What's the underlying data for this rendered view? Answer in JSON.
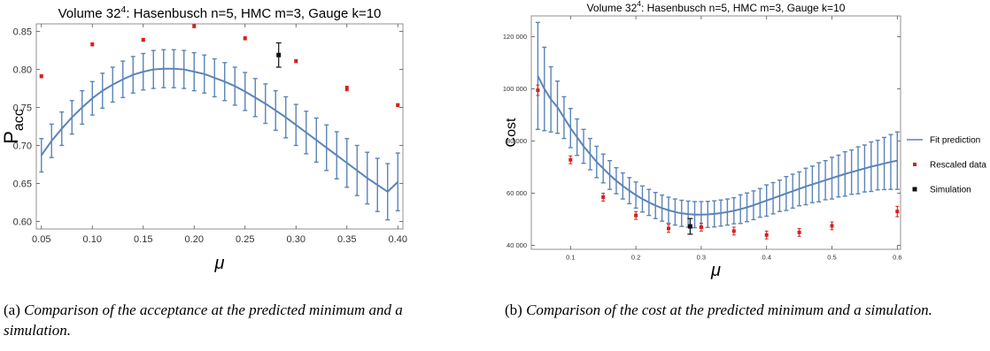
{
  "chart_data": [
    {
      "type": "line",
      "title_pre": "Volume 32",
      "title_sup": "4",
      "title_post": ": Hasenbusch n=5, HMC m=3, Gauge k=10",
      "xlabel": "μ",
      "ylabel_main": "P",
      "ylabel_sub": "acc",
      "xlim": [
        0.045,
        0.405
      ],
      "ylim": [
        0.59,
        0.86
      ],
      "xticks": [
        "0.05",
        "0.10",
        "0.15",
        "0.20",
        "0.25",
        "0.30",
        "0.35",
        "0.40"
      ],
      "xtick_values": [
        0.05,
        0.1,
        0.15,
        0.2,
        0.25,
        0.3,
        0.35,
        0.4
      ],
      "yticks": [
        "0.60",
        "0.65",
        "0.70",
        "0.75",
        "0.80",
        "0.85"
      ],
      "ytick_values": [
        0.6,
        0.65,
        0.7,
        0.75,
        0.8,
        0.85
      ],
      "fit": {
        "x": [
          0.05,
          0.06,
          0.07,
          0.08,
          0.09,
          0.1,
          0.11,
          0.12,
          0.13,
          0.14,
          0.15,
          0.16,
          0.17,
          0.18,
          0.19,
          0.2,
          0.21,
          0.22,
          0.23,
          0.24,
          0.25,
          0.26,
          0.27,
          0.28,
          0.29,
          0.3,
          0.31,
          0.32,
          0.33,
          0.34,
          0.35,
          0.36,
          0.37,
          0.38,
          0.39,
          0.4
        ],
        "y": [
          0.687,
          0.706,
          0.722,
          0.737,
          0.75,
          0.762,
          0.772,
          0.78,
          0.787,
          0.793,
          0.797,
          0.8,
          0.801,
          0.801,
          0.8,
          0.797,
          0.794,
          0.789,
          0.784,
          0.778,
          0.771,
          0.763,
          0.755,
          0.746,
          0.737,
          0.727,
          0.717,
          0.707,
          0.697,
          0.687,
          0.677,
          0.667,
          0.657,
          0.648,
          0.639,
          0.652
        ],
        "err": [
          0.022,
          0.022,
          0.022,
          0.022,
          0.022,
          0.022,
          0.023,
          0.023,
          0.024,
          0.024,
          0.024,
          0.025,
          0.025,
          0.025,
          0.025,
          0.025,
          0.025,
          0.025,
          0.025,
          0.025,
          0.025,
          0.025,
          0.026,
          0.026,
          0.027,
          0.027,
          0.028,
          0.029,
          0.03,
          0.031,
          0.032,
          0.033,
          0.034,
          0.035,
          0.037,
          0.038
        ]
      },
      "rescaled_data": {
        "x": [
          0.05,
          0.1,
          0.15,
          0.2,
          0.25,
          0.3,
          0.35,
          0.4
        ],
        "y": [
          0.791,
          0.833,
          0.839,
          0.857,
          0.841,
          0.811,
          0.775,
          0.753
        ],
        "err": [
          0.002,
          0.002,
          0.002,
          0.002,
          0.002,
          0.002,
          0.003,
          0.002
        ]
      },
      "simulation": {
        "x": [
          0.283
        ],
        "y": [
          0.819
        ],
        "err": [
          0.016
        ]
      },
      "colors": {
        "fit": "#5b84b8",
        "rescaled": "#d62020",
        "simulation": "#111111"
      }
    },
    {
      "type": "line",
      "title_pre": "Volume 32",
      "title_sup": "4",
      "title_post": ": Hasenbusch n=5, HMC m=3, Gauge k=10",
      "xlabel": "μ",
      "ylabel": "Cost",
      "xlim": [
        0.04,
        0.605
      ],
      "ylim": [
        38500,
        128000
      ],
      "xticks": [
        "0.1",
        "0.2",
        "0.3",
        "0.4",
        "0.5",
        "0.6"
      ],
      "xtick_values": [
        0.1,
        0.2,
        0.3,
        0.4,
        0.5,
        0.6
      ],
      "yticks": [
        "40 000",
        "60 000",
        "80 000",
        "100 000",
        "120 000"
      ],
      "ytick_values": [
        40000,
        60000,
        80000,
        100000,
        120000
      ],
      "fit": {
        "x": [
          0.05,
          0.06,
          0.07,
          0.08,
          0.09,
          0.1,
          0.11,
          0.12,
          0.13,
          0.14,
          0.15,
          0.16,
          0.17,
          0.18,
          0.19,
          0.2,
          0.21,
          0.22,
          0.23,
          0.24,
          0.25,
          0.26,
          0.27,
          0.28,
          0.29,
          0.3,
          0.31,
          0.32,
          0.33,
          0.34,
          0.35,
          0.36,
          0.37,
          0.38,
          0.39,
          0.4,
          0.41,
          0.42,
          0.43,
          0.44,
          0.45,
          0.46,
          0.47,
          0.48,
          0.49,
          0.5,
          0.51,
          0.52,
          0.53,
          0.54,
          0.55,
          0.56,
          0.57,
          0.58,
          0.59,
          0.6
        ],
        "y": [
          105000,
          100000,
          96000,
          93000,
          89000,
          85000,
          81500,
          78000,
          75000,
          72000,
          69500,
          67000,
          64800,
          62800,
          61000,
          59300,
          57800,
          56500,
          55300,
          54300,
          53500,
          52800,
          52300,
          52000,
          51800,
          51800,
          51900,
          52100,
          52400,
          52800,
          53300,
          53900,
          54600,
          55400,
          56300,
          57200,
          58100,
          59000,
          59900,
          60800,
          61700,
          62600,
          63400,
          64200,
          65000,
          65800,
          66600,
          67400,
          68100,
          68800,
          69500,
          70200,
          70800,
          71400,
          72000,
          72500
        ],
        "err": [
          20500,
          16000,
          12500,
          10000,
          8000,
          7500,
          7000,
          6500,
          6000,
          6000,
          5500,
          5500,
          5000,
          5000,
          5000,
          5000,
          5000,
          5000,
          5000,
          5000,
          5000,
          5000,
          5000,
          5000,
          5000,
          5000,
          5000,
          5000,
          5000,
          5000,
          5000,
          5500,
          5500,
          5500,
          5500,
          6000,
          6000,
          6000,
          6500,
          6500,
          6500,
          7000,
          7000,
          7500,
          7500,
          8000,
          8000,
          8500,
          8500,
          9000,
          9000,
          9500,
          9500,
          10000,
          10500,
          11000
        ]
      },
      "rescaled_data": {
        "x": [
          0.05,
          0.1,
          0.15,
          0.2,
          0.25,
          0.3,
          0.35,
          0.4,
          0.45,
          0.5,
          0.6
        ],
        "y": [
          99500,
          72800,
          58500,
          51500,
          46500,
          47000,
          45500,
          44000,
          45000,
          47500,
          53000
        ],
        "err": [
          2000,
          1500,
          1500,
          1500,
          1500,
          1500,
          1500,
          1500,
          1500,
          1500,
          2000
        ]
      },
      "simulation": {
        "x": [
          0.283
        ],
        "y": [
          47300
        ],
        "err": [
          3000
        ]
      },
      "legend": {
        "placement": "right",
        "entries": [
          "Fit prediction",
          "Rescaled data",
          "Simulation"
        ]
      },
      "colors": {
        "fit": "#5b84b8",
        "rescaled": "#d62020",
        "simulation": "#111111"
      }
    }
  ],
  "captions": {
    "a_label": "(a)",
    "a_text": "Comparison of the acceptance at the predicted minimum and a simulation.",
    "b_label": "(b)",
    "b_text": "Comparison of the cost at the predicted minimum and a simulation."
  }
}
